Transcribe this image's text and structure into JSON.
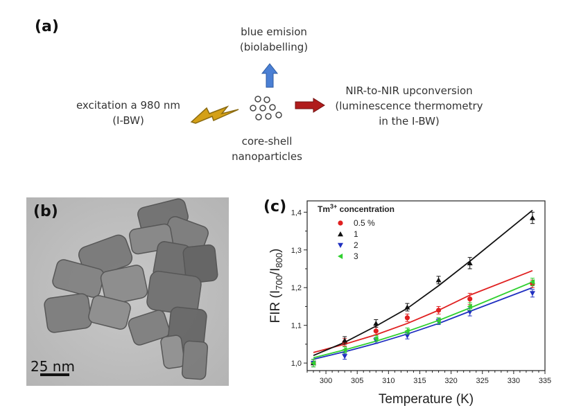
{
  "panels": {
    "a": "(a)",
    "b": "(b)",
    "c": "(c)"
  },
  "schematic": {
    "excitation_line1": "excitation a 980 nm",
    "excitation_line2": "(I-BW)",
    "blue_line1": "blue emision",
    "blue_line2": "(biolabelling)",
    "nir_line1": "NIR-to-NIR upconversion",
    "nir_line2": "(luminescence thermometry",
    "nir_line3": "in the I-BW)",
    "core_line1": "core-shell",
    "core_line2": "nanoparticles",
    "icons": [
      "lightning-bolt-icon",
      "nanoparticle-cluster-icon",
      "blue-up-arrow-icon",
      "red-right-arrow-icon"
    ],
    "colors": {
      "lightning": "#d4a017",
      "blue_arrow": "#4a7fd4",
      "red_arrow": "#b01c1c"
    }
  },
  "tem": {
    "scale_bar_label": "25 nm"
  },
  "chart_data": {
    "type": "scatter",
    "xlabel": "Temperature (K)",
    "ylabel_main": "FIR (I",
    "ylabel_sub1": "700",
    "ylabel_mid": "/I",
    "ylabel_sub2": "800",
    "ylabel_end": ")",
    "xlim": [
      297,
      335
    ],
    "ylim": [
      0.98,
      1.43
    ],
    "x_ticks": [
      300,
      305,
      310,
      315,
      320,
      325,
      330,
      335
    ],
    "y_ticks": [
      {
        "value": 1.0,
        "label": "1,0"
      },
      {
        "value": 1.1,
        "label": "1,1"
      },
      {
        "value": 1.2,
        "label": "1,2"
      },
      {
        "value": 1.3,
        "label": "1,3"
      },
      {
        "value": 1.4,
        "label": "1,4"
      }
    ],
    "legend_title": "Tm",
    "legend_title_sup": "3+",
    "legend_title_rest": " concentration",
    "series": [
      {
        "name": "0.5 %",
        "color": "#e02020",
        "marker": "circle",
        "x": [
          298,
          303,
          308,
          313,
          318,
          323,
          333
        ],
        "y": [
          1.0,
          1.055,
          1.085,
          1.12,
          1.14,
          1.17,
          1.21
        ],
        "err": [
          0.01,
          0.01,
          0.01,
          0.01,
          0.01,
          0.015,
          0.01
        ],
        "fit": [
          1.028,
          1.05,
          1.075,
          1.105,
          1.14,
          1.18,
          1.245
        ]
      },
      {
        "name": "1",
        "color": "#111111",
        "marker": "triangle-up",
        "x": [
          298,
          303,
          308,
          313,
          318,
          323,
          333
        ],
        "y": [
          1.0,
          1.06,
          1.105,
          1.148,
          1.22,
          1.265,
          1.385
        ],
        "err": [
          0.01,
          0.01,
          0.01,
          0.01,
          0.01,
          0.015,
          0.015
        ],
        "fit": [
          1.02,
          1.055,
          1.098,
          1.145,
          1.205,
          1.27,
          1.405
        ]
      },
      {
        "name": "2",
        "color": "#2030c0",
        "marker": "triangle-down",
        "x": [
          298,
          303,
          308,
          313,
          318,
          323,
          333
        ],
        "y": [
          1.0,
          1.018,
          1.06,
          1.072,
          1.11,
          1.135,
          1.185
        ],
        "err": [
          0.01,
          0.008,
          0.008,
          0.008,
          0.008,
          0.01,
          0.01
        ],
        "fit": [
          1.01,
          1.03,
          1.052,
          1.077,
          1.105,
          1.137,
          1.2
        ]
      },
      {
        "name": "3",
        "color": "#30d030",
        "marker": "triangle-left",
        "x": [
          298,
          303,
          308,
          313,
          318,
          323,
          333
        ],
        "y": [
          1.0,
          1.035,
          1.065,
          1.085,
          1.112,
          1.15,
          1.215
        ],
        "err": [
          0.01,
          0.008,
          0.008,
          0.008,
          0.008,
          0.01,
          0.01
        ],
        "fit": [
          1.014,
          1.035,
          1.058,
          1.084,
          1.113,
          1.146,
          1.215
        ]
      }
    ]
  }
}
